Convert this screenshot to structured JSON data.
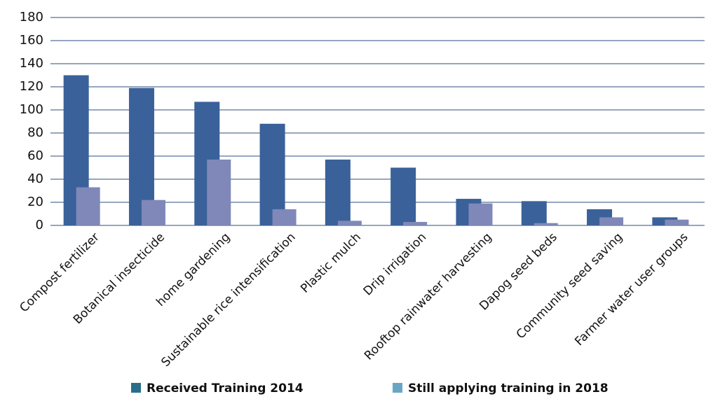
{
  "chart_data": {
    "type": "bar",
    "categories": [
      "Compost fertilizer",
      "Botanical insecticide",
      "home gardening",
      "Sustainable rice intensification",
      "Plastic mulch",
      "Drip irrigation",
      "Rooftop rainwater harvesting",
      "Dapog seed beds",
      "Community seed saving",
      "Farmer water user groups"
    ],
    "series": [
      {
        "name": "Received Training 2014",
        "color": "#3a6199",
        "legend_color": "#2a6e8a",
        "values": [
          130,
          119,
          107,
          88,
          57,
          50,
          23,
          21,
          14,
          7
        ]
      },
      {
        "name": "Still applying training in 2018",
        "color": "#7f88b8",
        "legend_color": "#6aa6c4",
        "values": [
          33,
          22,
          57,
          14,
          4,
          3,
          19,
          2,
          7,
          5
        ]
      }
    ],
    "ylim": [
      0,
      180
    ],
    "yticks": [
      0,
      20,
      40,
      60,
      80,
      100,
      120,
      140,
      160,
      180
    ],
    "grid": true
  }
}
